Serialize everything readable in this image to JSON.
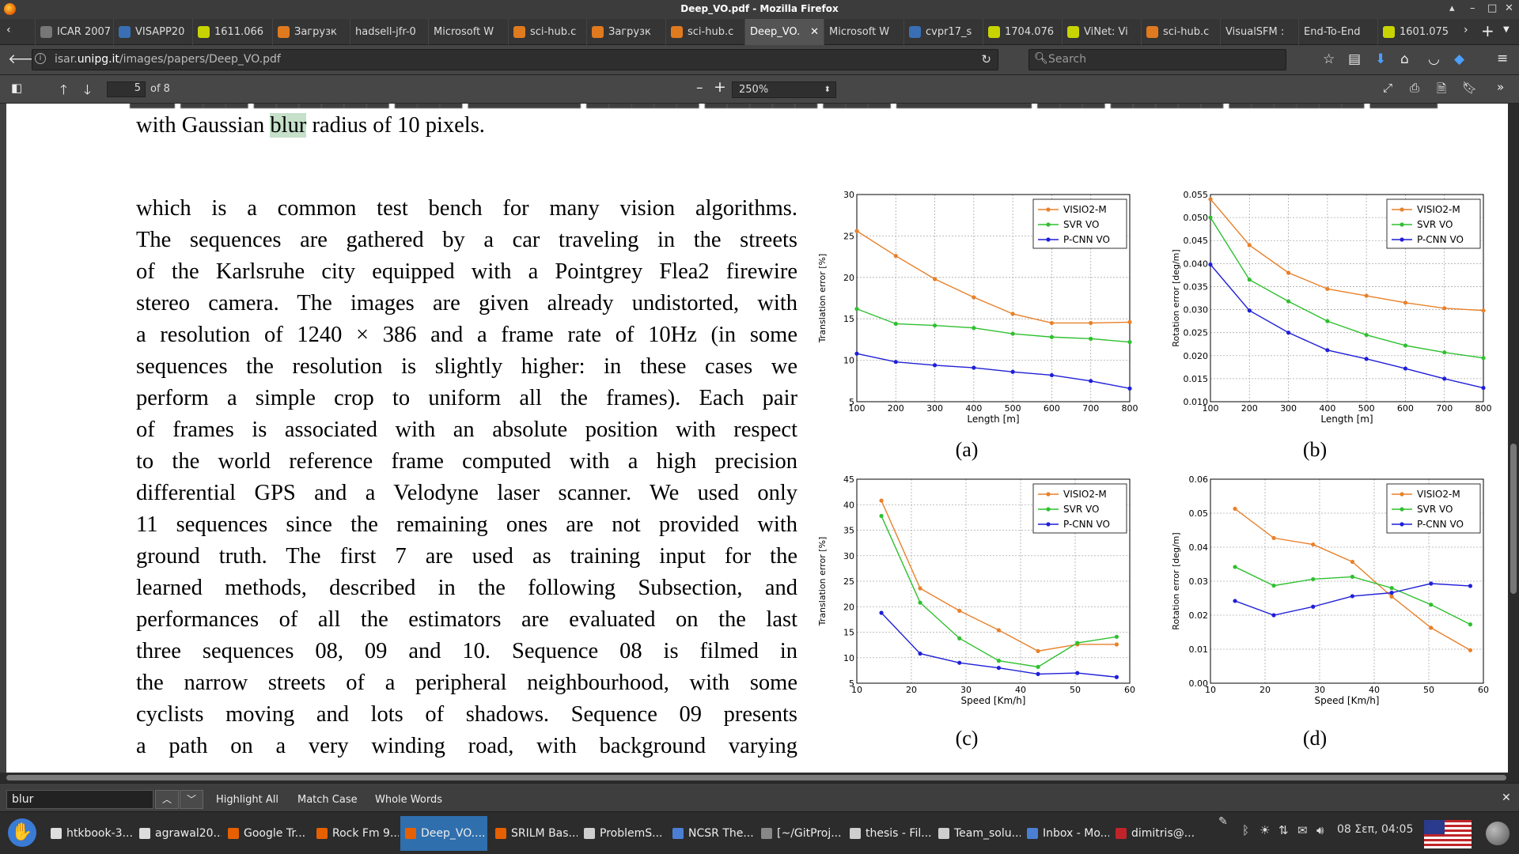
{
  "window": {
    "title": "Deep_VO.pdf - Mozilla Firefox"
  },
  "tabs": [
    {
      "label": "ICAR 2007 -",
      "color": "#777777"
    },
    {
      "label": "VISAPP20",
      "color": "#3a6fb5"
    },
    {
      "label": "1611.066",
      "color": "#c8d400"
    },
    {
      "label": "Загрузк",
      "color": "#e07a1f"
    },
    {
      "label": "hadsell-jfr-0",
      "color": ""
    },
    {
      "label": "Microsoft W",
      "color": ""
    },
    {
      "label": "sci-hub.c",
      "color": "#e07a1f"
    },
    {
      "label": "Загрузк",
      "color": "#e07a1f"
    },
    {
      "label": "sci-hub.c",
      "color": "#e07a1f"
    },
    {
      "label": "Deep_VO.",
      "color": "",
      "active": true
    },
    {
      "label": "Microsoft W",
      "color": ""
    },
    {
      "label": "cvpr17_s",
      "color": "#3a6fb5"
    },
    {
      "label": "1704.076",
      "color": "#c8d400"
    },
    {
      "label": "ViNet: Vi",
      "color": "#c8d400"
    },
    {
      "label": "sci-hub.c",
      "color": "#e07a1f"
    },
    {
      "label": "VisualSFM :",
      "color": ""
    },
    {
      "label": "End-To-End",
      "color": ""
    },
    {
      "label": "1601.075",
      "color": "#c8d400"
    }
  ],
  "nav": {
    "url_host": "isar.",
    "url_domain": "unipg.it",
    "url_path": "/images/papers/Deep_VO.pdf",
    "search_placeholder": "Search"
  },
  "pdf_toolbar": {
    "page": "5",
    "of_pages": "of 8",
    "zoom": "250%"
  },
  "document": {
    "caption_top": "with Gaussian",
    "highlight": "blur",
    "caption_rest": "radius of 10 pixels.",
    "paragraph_lines": [
      "which is a common test bench for many vision algorithms.",
      "The sequences are gathered by a car traveling in the streets",
      "of the Karlsruhe city equipped with a Pointgrey Flea2 firewire",
      "stereo camera. The images are given already undistorted, with",
      "a resolution of 1240 × 386 and a frame rate of 10Hz (in some",
      "sequences the resolution is slightly higher: in these cases we",
      "perform a simple crop to uniform all the frames). Each pair",
      "of frames is associated with an absolute position with respect",
      "to the world reference frame computed with a high precision",
      "differential GPS and a Velodyne laser scanner. We used only",
      "11 sequences since the remaining ones are not provided with",
      "ground truth. The first 7 are used as training input for the",
      "learned methods, described in the following Subsection, and",
      "performances of all the estimators are evaluated on the last",
      "three sequences 08, 09 and 10. Sequence 08 is filmed in",
      "the narrow streets of a peripheral neighbourhood, with some",
      "cyclists moving and lots of shadows. Sequence 09 presents",
      "a path on a very winding road, with background varying"
    ],
    "sublabels": [
      "(a)",
      "(b)",
      "(c)",
      "(d)"
    ]
  },
  "chart_colors": {
    "VISIO2-M": "#e8812a",
    "SVR VO": "#2fc02f",
    "P-CNN VO": "#1f1fd8"
  },
  "chart_data": [
    {
      "type": "line",
      "xlabel": "Length [m]",
      "ylabel": "Translation error [%]",
      "x": [
        100,
        200,
        300,
        400,
        500,
        600,
        700,
        800
      ],
      "xlim": [
        100,
        800
      ],
      "ylim": [
        5,
        30
      ],
      "xticks": [
        "100",
        "200",
        "300",
        "400",
        "500",
        "600",
        "700",
        "800"
      ],
      "yticks": [
        "5",
        "10",
        "15",
        "20",
        "25",
        "30"
      ],
      "legend": "top-right",
      "grid": true,
      "series": [
        {
          "name": "VISIO2-M",
          "values": [
            25.6,
            22.6,
            19.8,
            17.6,
            15.6,
            14.5,
            14.5,
            14.6
          ]
        },
        {
          "name": "SVR VO",
          "values": [
            16.2,
            14.4,
            14.2,
            13.9,
            13.2,
            12.8,
            12.6,
            12.2
          ]
        },
        {
          "name": "P-CNN VO",
          "values": [
            10.8,
            9.8,
            9.4,
            9.1,
            8.6,
            8.2,
            7.5,
            6.6
          ]
        }
      ]
    },
    {
      "type": "line",
      "xlabel": "Length [m]",
      "ylabel": "Rotation error [deg/m]",
      "x": [
        100,
        200,
        300,
        400,
        500,
        600,
        700,
        800
      ],
      "xlim": [
        100,
        800
      ],
      "ylim": [
        0.01,
        0.055
      ],
      "xticks": [
        "100",
        "200",
        "300",
        "400",
        "500",
        "600",
        "700",
        "800"
      ],
      "yticks": [
        "0.010",
        "0.015",
        "0.020",
        "0.025",
        "0.030",
        "0.035",
        "0.040",
        "0.045",
        "0.050",
        "0.055"
      ],
      "legend": "top-right",
      "grid": true,
      "series": [
        {
          "name": "VISIO2-M",
          "values": [
            0.054,
            0.044,
            0.038,
            0.0345,
            0.033,
            0.0315,
            0.0303,
            0.0298
          ]
        },
        {
          "name": "SVR VO",
          "values": [
            0.05,
            0.0365,
            0.0318,
            0.0275,
            0.0245,
            0.0222,
            0.0207,
            0.0195
          ]
        },
        {
          "name": "P-CNN VO",
          "values": [
            0.0398,
            0.0298,
            0.025,
            0.0212,
            0.0193,
            0.0172,
            0.015,
            0.013
          ]
        }
      ]
    },
    {
      "type": "line",
      "xlabel": "Speed [Km/h]",
      "ylabel": "Translation error [%]",
      "x": [
        14.5,
        21.6,
        28.8,
        36.0,
        43.2,
        50.4,
        57.6
      ],
      "xlim": [
        10,
        60
      ],
      "ylim": [
        5,
        45
      ],
      "xticks": [
        "10",
        "20",
        "30",
        "40",
        "50",
        "60"
      ],
      "yticks": [
        "5",
        "10",
        "15",
        "20",
        "25",
        "30",
        "35",
        "40",
        "45"
      ],
      "legend": "top-right",
      "grid": true,
      "series": [
        {
          "name": "VISIO2-M",
          "values": [
            40.8,
            23.6,
            19.2,
            15.4,
            11.3,
            12.6,
            12.6
          ]
        },
        {
          "name": "SVR VO",
          "values": [
            37.8,
            20.8,
            13.8,
            9.4,
            8.2,
            12.9,
            14.1
          ]
        },
        {
          "name": "P-CNN VO",
          "values": [
            18.8,
            10.8,
            9.0,
            8.0,
            6.8,
            7.0,
            6.2
          ]
        }
      ]
    },
    {
      "type": "line",
      "xlabel": "Speed [Km/h]",
      "ylabel": "Rotation error [deg/m]",
      "x": [
        14.5,
        21.6,
        28.8,
        36.0,
        43.2,
        50.4,
        57.6
      ],
      "xlim": [
        10,
        60
      ],
      "ylim": [
        0.0,
        0.06
      ],
      "xticks": [
        "10",
        "20",
        "30",
        "40",
        "50",
        "60"
      ],
      "yticks": [
        "0.00",
        "0.01",
        "0.02",
        "0.03",
        "0.04",
        "0.05",
        "0.06"
      ],
      "legend": "top-right",
      "grid": true,
      "series": [
        {
          "name": "VISIO2-M",
          "values": [
            0.0513,
            0.0427,
            0.0408,
            0.0357,
            0.0255,
            0.0163,
            0.0097
          ]
        },
        {
          "name": "SVR VO",
          "values": [
            0.0342,
            0.0287,
            0.0306,
            0.0313,
            0.028,
            0.0231,
            0.0173
          ]
        },
        {
          "name": "P-CNN VO",
          "values": [
            0.0242,
            0.02,
            0.0225,
            0.0256,
            0.0266,
            0.0293,
            0.0286
          ]
        }
      ]
    }
  ],
  "findbar": {
    "query": "blur",
    "highlight_all": "Highlight All",
    "match_case": "Match Case",
    "whole_words": "Whole Words"
  },
  "taskbar": {
    "items": [
      {
        "label": "htkbook-3...",
        "color": "#dddddd"
      },
      {
        "label": "agrawal20...",
        "color": "#dddddd"
      },
      {
        "label": "Google Tr...",
        "color": "#e66000"
      },
      {
        "label": "Rock Fm 9...",
        "color": "#e66000"
      },
      {
        "label": "Deep_VO....",
        "color": "#e66000",
        "active": true
      },
      {
        "label": "SRILM Bas...",
        "color": "#e66000"
      },
      {
        "label": "ProblemS...",
        "color": "#cfcfcf"
      },
      {
        "label": "NCSR The...",
        "color": "#4a7fd4"
      },
      {
        "label": "[~/GitProj...",
        "color": "#888888"
      },
      {
        "label": "thesis - Fil...",
        "color": "#cfcfcf"
      },
      {
        "label": "Team_solu...",
        "color": "#cfcfcf"
      },
      {
        "label": "Inbox - Mo...",
        "color": "#4a7fd4"
      },
      {
        "label": "dimitris@...",
        "color": "#c0242a"
      }
    ],
    "clock": "08 Σεπ, 04:05"
  }
}
